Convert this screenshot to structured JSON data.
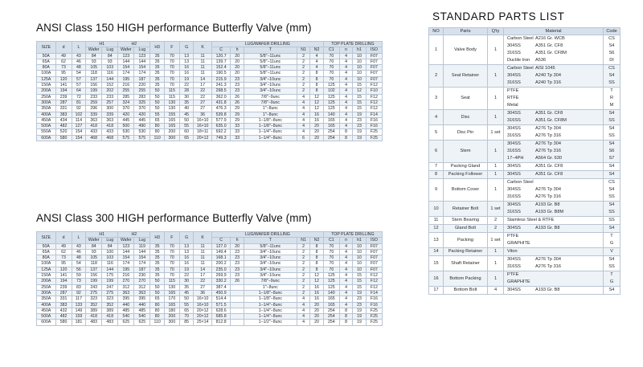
{
  "class150": {
    "title": "ANSI Class 150 HIGH performance Butterfly Valve (mm)",
    "header": {
      "size": "SIZE",
      "d": "d",
      "l": "L",
      "h1": "H1",
      "h2": "H2",
      "wafer": "Wafer",
      "lug": "Lug",
      "h3": "H3",
      "f": "F",
      "g": "G",
      "k": "K",
      "lug_drilling": "LUG/WAFER DRILLING",
      "c": "C",
      "h": "h",
      "t": "T",
      "n1": "N1",
      "n2": "N2",
      "top_drilling": "TOP PLATE DRILLING",
      "c1": "C1",
      "n": "n",
      "h1s": "h1",
      "iso": "ISO"
    },
    "rows": [
      [
        "50A",
        "49",
        "43",
        "84",
        "84",
        "123",
        "123",
        "35",
        "70",
        "13",
        "11",
        "120.7",
        "20",
        "5/8\"−11unc",
        "2",
        "4",
        "70",
        "4",
        "10",
        "F07"
      ],
      [
        "65A",
        "62",
        "46",
        "93",
        "93",
        "144",
        "144",
        "35",
        "70",
        "13",
        "11",
        "139.7",
        "20",
        "5/8\"−11unc",
        "2",
        "4",
        "70",
        "4",
        "10",
        "F07"
      ],
      [
        "80A",
        "73",
        "48",
        "105",
        "103",
        "154",
        "154",
        "35",
        "70",
        "16",
        "11",
        "152.4",
        "20",
        "5/8\"−11unc",
        "2",
        "4",
        "70",
        "4",
        "10",
        "F07"
      ],
      [
        "100A",
        "95",
        "54",
        "118",
        "116",
        "174",
        "174",
        "35",
        "70",
        "16",
        "11",
        "190.5",
        "20",
        "5/8\"−11unc",
        "2",
        "8",
        "70",
        "4",
        "10",
        "F07"
      ],
      [
        "125A",
        "120",
        "57",
        "137",
        "144",
        "195",
        "187",
        "35",
        "70",
        "19",
        "14",
        "215.9",
        "23",
        "3/4\"−10unc",
        "2",
        "8",
        "70",
        "4",
        "10",
        "F07"
      ],
      [
        "150A",
        "141",
        "57",
        "156",
        "152",
        "216",
        "220",
        "35",
        "70",
        "22",
        "17",
        "241.3",
        "23",
        "3/4\"−10unc",
        "2",
        "8",
        "125",
        "4",
        "15",
        "F12"
      ],
      [
        "200A",
        "194",
        "64",
        "199",
        "202",
        "255",
        "255",
        "50",
        "115",
        "28",
        "22",
        "298.5",
        "23",
        "3/4\"−10unc",
        "2",
        "8",
        "102",
        "4",
        "12",
        "F10"
      ],
      [
        "250A",
        "239",
        "72",
        "233",
        "233",
        "285",
        "283",
        "50",
        "115",
        "30",
        "22",
        "362.0",
        "26",
        "7/8\"−9unc",
        "4",
        "12",
        "125",
        "4",
        "15",
        "F12"
      ],
      [
        "300A",
        "287",
        "81",
        "259",
        "257",
        "324",
        "325",
        "50",
        "130",
        "35",
        "27",
        "431.8",
        "26",
        "7/8\"−9unc",
        "4",
        "12",
        "125",
        "4",
        "15",
        "F12"
      ],
      [
        "350A",
        "331",
        "92",
        "296",
        "300",
        "370",
        "370",
        "50",
        "130",
        "40",
        "27",
        "476.3",
        "29",
        "1\"−8unc",
        "4",
        "12",
        "125",
        "4",
        "15",
        "F12"
      ],
      [
        "400A",
        "383",
        "102",
        "339",
        "339",
        "420",
        "420",
        "55",
        "155",
        "45",
        "36",
        "539.8",
        "29",
        "1\"−8unc",
        "4",
        "16",
        "140",
        "4",
        "19",
        "F14"
      ],
      [
        "450A",
        "434",
        "114",
        "363",
        "363",
        "445",
        "445",
        "65",
        "165",
        "50",
        "16×10",
        "577.9",
        "29",
        "1−1/8\"−8unc",
        "4",
        "16",
        "165",
        "4",
        "23",
        "F16"
      ],
      [
        "500A",
        "482",
        "127",
        "418",
        "418",
        "500",
        "490",
        "80",
        "165",
        "55",
        "16×10",
        "635.0",
        "33",
        "1−1/8\"−8unc",
        "4",
        "20",
        "165",
        "4",
        "23",
        "F16"
      ],
      [
        "550A",
        "520",
        "154",
        "433",
        "433",
        "530",
        "530",
        "80",
        "200",
        "60",
        "18×11",
        "692.2",
        "33",
        "1−1/4\"−8unc",
        "4",
        "20",
        "254",
        "8",
        "19",
        "F25"
      ],
      [
        "600A",
        "580",
        "154",
        "468",
        "468",
        "575",
        "575",
        "110",
        "300",
        "65",
        "20×12",
        "749.3",
        "33",
        "1−1/4\"−8unc",
        "6",
        "20",
        "254",
        "8",
        "19",
        "F25"
      ]
    ]
  },
  "class300": {
    "title": "ANSI Class 300 HIGH performance Butterfly Valve (mm)",
    "rows": [
      [
        "50A",
        "49",
        "43",
        "84",
        "84",
        "123",
        "119",
        "35",
        "70",
        "13",
        "11",
        "127.0",
        "20",
        "5/8\"−11unc",
        "2",
        "8",
        "70",
        "4",
        "10",
        "F07"
      ],
      [
        "65A",
        "62",
        "46",
        "93",
        "100",
        "144",
        "144",
        "35",
        "70",
        "13",
        "11",
        "149.4",
        "23",
        "3/4\"−10unc",
        "2",
        "8",
        "70",
        "4",
        "10",
        "F07"
      ],
      [
        "80A",
        "73",
        "48",
        "105",
        "103",
        "154",
        "154",
        "35",
        "70",
        "16",
        "11",
        "168.1",
        "23",
        "3/4\"−10unc",
        "2",
        "8",
        "70",
        "4",
        "10",
        "F07"
      ],
      [
        "100A",
        "95",
        "54",
        "118",
        "116",
        "174",
        "174",
        "35",
        "70",
        "16",
        "11",
        "200.2",
        "23",
        "3/4\"−10unc",
        "2",
        "8",
        "70",
        "4",
        "10",
        "F07"
      ],
      [
        "125A",
        "120",
        "56",
        "137",
        "144",
        "195",
        "187",
        "35",
        "70",
        "19",
        "14",
        "235.0",
        "23",
        "3/4\"−10unc",
        "2",
        "8",
        "70",
        "4",
        "10",
        "F07"
      ],
      [
        "150A",
        "141",
        "59",
        "156",
        "175",
        "216",
        "230",
        "35",
        "70",
        "22",
        "17",
        "269.9",
        "23",
        "3/4\"−10unc",
        "2",
        "12",
        "125",
        "4",
        "15",
        "F12"
      ],
      [
        "200A",
        "194",
        "73",
        "199",
        "199",
        "270",
        "270",
        "50",
        "115",
        "30",
        "22",
        "330.2",
        "26",
        "7/8\"−9unc",
        "2",
        "12",
        "125",
        "4",
        "15",
        "F12"
      ],
      [
        "250A",
        "239",
        "83",
        "243",
        "247",
        "312",
        "312",
        "50",
        "130",
        "35",
        "27",
        "387.4",
        "",
        "1\"−8unc",
        "2",
        "16",
        "125",
        "4",
        "15",
        "F12"
      ],
      [
        "300A",
        "287",
        "92",
        "275",
        "275",
        "363",
        "363",
        "50",
        "165",
        "45",
        "36",
        "450.9",
        "",
        "1−1/8\"−8unc",
        "2",
        "16",
        "140",
        "4",
        "19",
        "F14"
      ],
      [
        "350A",
        "331",
        "117",
        "323",
        "323",
        "395",
        "395",
        "65",
        "170",
        "50",
        "16×10",
        "514.4",
        "",
        "1−1/8\"−8unc",
        "4",
        "16",
        "165",
        "4",
        "23",
        "F16"
      ],
      [
        "400A",
        "383",
        "133",
        "352",
        "352",
        "440",
        "440",
        "80",
        "165",
        "55",
        "16×10",
        "571.5",
        "",
        "1−1/4\"−8unc",
        "4",
        "20",
        "165",
        "4",
        "23",
        "F16"
      ],
      [
        "450A",
        "432",
        "149",
        "389",
        "389",
        "485",
        "485",
        "80",
        "180",
        "65",
        "20×12",
        "628.6",
        "",
        "1−1/4\"−8unc",
        "4",
        "20",
        "254",
        "8",
        "19",
        "F25"
      ],
      [
        "500A",
        "482",
        "159",
        "418",
        "418",
        "540",
        "540",
        "80",
        "200",
        "70",
        "20×12",
        "685.8",
        "",
        "1−1/4\"−8unc",
        "4",
        "20",
        "254",
        "8",
        "19",
        "F25"
      ],
      [
        "600A",
        "580",
        "181",
        "483",
        "483",
        "625",
        "625",
        "110",
        "300",
        "85",
        "25×14",
        "812.8",
        "",
        "1−1/2\"−8unc",
        "4",
        "20",
        "254",
        "8",
        "19",
        "F25"
      ]
    ]
  },
  "parts": {
    "title": "STANDARD PARTS LIST",
    "header": {
      "no": "NO",
      "parts": "Parts",
      "qty": "Q'ty",
      "material": "Material",
      "code": "Code"
    },
    "rows": [
      {
        "no": "1",
        "part": "Valve Body",
        "qty": "1",
        "mats": [
          [
            "Carbon Steel",
            "A216 Gr. WCB",
            "CS"
          ],
          [
            "304SS",
            "A351 Gr. CF8",
            "S4"
          ],
          [
            "316SS",
            "A351 Gr. CF8M",
            "S6"
          ],
          [
            "Ductile Iron",
            "A536",
            "DI"
          ]
        ]
      },
      {
        "no": "2",
        "part": "Seat Retainer",
        "qty": "1",
        "mats": [
          [
            "Carbon Steel",
            "AISI 1045",
            "CS"
          ],
          [
            "304SS",
            "A240 Tp 304",
            "S4"
          ],
          [
            "316SS",
            "A240 Tp 316",
            "SS"
          ]
        ]
      },
      {
        "no": "3",
        "part": "Seat",
        "qty": "1",
        "mats": [
          [
            "PTFE",
            "",
            "T"
          ],
          [
            "RTFE",
            "",
            "R"
          ],
          [
            "Metal",
            "",
            "M"
          ]
        ]
      },
      {
        "no": "4",
        "part": "Disc",
        "qty": "1",
        "mats": [
          [
            "304SS",
            "A351 Gr. CF8",
            "S4"
          ],
          [
            "316SS",
            "A351 Gr. CF8M",
            "SS"
          ]
        ]
      },
      {
        "no": "5",
        "part": "Disc Pin",
        "qty": "1 set",
        "mats": [
          [
            "304SS",
            "A276 Tp 304",
            "S4"
          ],
          [
            "316SS",
            "A276 Tp 316",
            "SS"
          ]
        ]
      },
      {
        "no": "6",
        "part": "Stem",
        "qty": "1",
        "mats": [
          [
            "304SS",
            "A276 Tp 304",
            "S4"
          ],
          [
            "316SS",
            "A276 Tp 316",
            "S6"
          ],
          [
            "17−4PH",
            "A564 Gr. 630",
            "S7"
          ]
        ]
      },
      {
        "no": "7",
        "part": "Packing Gland",
        "qty": "1",
        "mats": [
          [
            "304SS",
            "A351 Gr. CF8",
            "S4"
          ]
        ]
      },
      {
        "no": "8",
        "part": "Packing Follower",
        "qty": "1",
        "mats": [
          [
            "304SS",
            "A351 Gr. CF8",
            "S4"
          ]
        ]
      },
      {
        "no": "9",
        "part": "Bottom Cover",
        "qty": "1",
        "mats": [
          [
            "Carbon Steel",
            "",
            "CS"
          ],
          [
            "304SS",
            "A276 Tp 304",
            "S4"
          ],
          [
            "316SS",
            "A276 Tp 316",
            "SS"
          ]
        ]
      },
      {
        "no": "10",
        "part": "Retainer Bolt",
        "qty": "1 set",
        "mats": [
          [
            "304SS",
            "A193 Gr. B8",
            "S4"
          ],
          [
            "316SS",
            "A193 Gr. B8M",
            "SS"
          ]
        ]
      },
      {
        "no": "11",
        "part": "Stem Bearing",
        "qty": "2",
        "mats": [
          [
            "Stainless Steel & RTFE",
            "",
            "SS"
          ]
        ]
      },
      {
        "no": "12",
        "part": "Gland Bolt",
        "qty": "2",
        "mats": [
          [
            "304SS",
            "A193 Gr. B8",
            "S4"
          ]
        ]
      },
      {
        "no": "13",
        "part": "Packing",
        "qty": "1 set",
        "mats": [
          [
            "PTFE",
            "",
            "T"
          ],
          [
            "GRAPHITE",
            "",
            "G"
          ]
        ]
      },
      {
        "no": "14",
        "part": "Packing Retainer",
        "qty": "1",
        "mats": [
          [
            "Viton",
            "",
            "V"
          ]
        ]
      },
      {
        "no": "15",
        "part": "Shaft Retainer",
        "qty": "1",
        "mats": [
          [
            "304SS",
            "A276 Tp 304",
            "S4"
          ],
          [
            "316SS",
            "A276 Tp 316",
            "SS"
          ]
        ]
      },
      {
        "no": "16",
        "part": "Bottom Packing",
        "qty": "1",
        "mats": [
          [
            "PTFE",
            "",
            "T"
          ],
          [
            "GRAPHITE",
            "",
            "G"
          ]
        ]
      },
      {
        "no": "17",
        "part": "Bottom Bolt",
        "qty": "4",
        "mats": [
          [
            "304SS",
            "A193 Gr. B8",
            "S4"
          ]
        ]
      }
    ]
  }
}
